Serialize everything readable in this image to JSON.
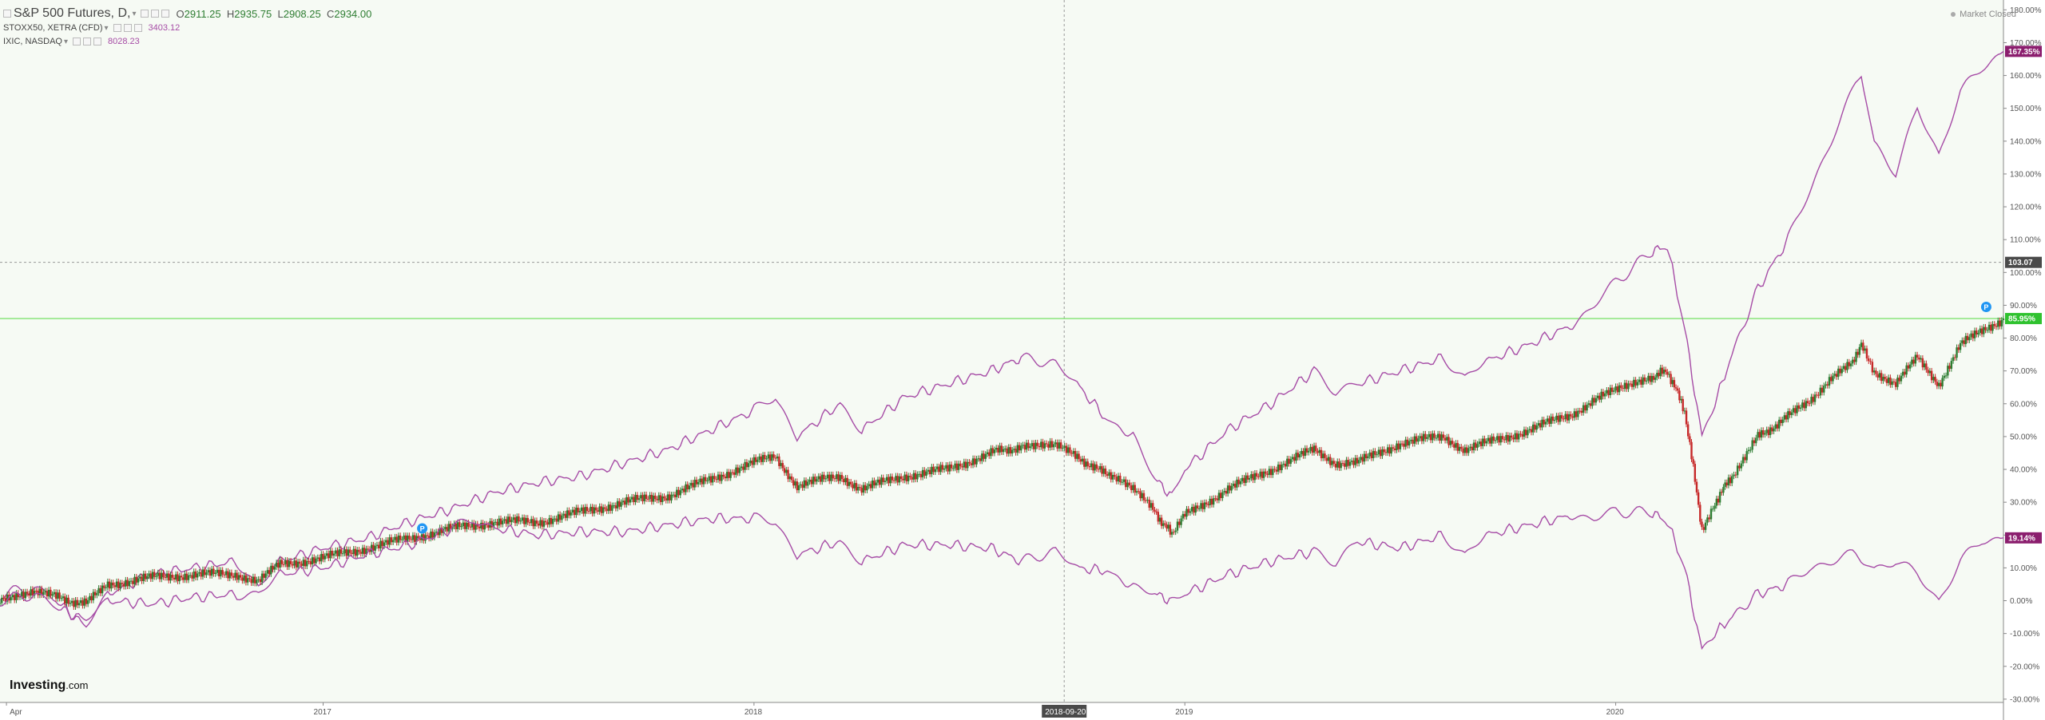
{
  "legend": {
    "main": {
      "name": "S&P 500 Futures, D,",
      "open_label": "O",
      "open": "2911.25",
      "high_label": "H",
      "high": "2935.75",
      "low_label": "L",
      "low": "2908.25",
      "close_label": "C",
      "close": "2934.00"
    },
    "overlays": [
      {
        "name": "STOXX50, XETRA (CFD)",
        "value": "3403.12"
      },
      {
        "name": "IXIC, NASDAQ",
        "value": "8028.23"
      }
    ]
  },
  "status": {
    "market": "Market Closed"
  },
  "branding": {
    "logo_main": "Investing",
    "logo_suffix": ".com"
  },
  "cursor": {
    "price_label": "103.07",
    "date_label": "2018-09-20"
  },
  "price_badges": {
    "ixic": "167.35%",
    "spx": "85.95%",
    "stoxx": "19.14%"
  },
  "colors": {
    "compare_line": "#a64ca6",
    "candle_up": "#2e7d32",
    "candle_down": "#c62828",
    "last_price_line": "#66dd55",
    "background": "#f6faf4",
    "marker": "#2196f3"
  },
  "chart_data": {
    "type": "line",
    "x_tick_labels": [
      "Apr",
      "2017",
      "2018",
      "2019",
      "2020"
    ],
    "y_tick_labels": [
      "180.00%",
      "170.00%",
      "160.00%",
      "150.00%",
      "140.00%",
      "130.00%",
      "120.00%",
      "110.00%",
      "100.00%",
      "90.00%",
      "80.00%",
      "70.00%",
      "60.00%",
      "50.00%",
      "40.00%",
      "30.00%",
      "20.00%",
      "10.00%",
      "0.00%",
      "-10.00%",
      "-20.00%",
      "-30.00%"
    ],
    "ylim": [
      -31,
      183
    ],
    "xlim": [
      2016.25,
      2020.9
    ],
    "last_price_level": 85.95,
    "cursor_x": 2018.72,
    "cursor_y": 103.07,
    "markers": [
      {
        "x": 2017.23,
        "y": 22,
        "label": "P"
      },
      {
        "x": 2020.86,
        "y": 89.5,
        "label": "P"
      }
    ],
    "series": [
      {
        "name": "IXIC, NASDAQ",
        "style": "line",
        "points": [
          [
            2016.25,
            2
          ],
          [
            2016.33,
            4
          ],
          [
            2016.38,
            0
          ],
          [
            2016.45,
            -8
          ],
          [
            2016.5,
            2
          ],
          [
            2016.6,
            8
          ],
          [
            2016.7,
            10
          ],
          [
            2016.8,
            12
          ],
          [
            2016.85,
            4
          ],
          [
            2016.9,
            12
          ],
          [
            2017.0,
            16
          ],
          [
            2017.1,
            19
          ],
          [
            2017.2,
            24
          ],
          [
            2017.3,
            28
          ],
          [
            2017.4,
            33
          ],
          [
            2017.5,
            36
          ],
          [
            2017.6,
            38
          ],
          [
            2017.7,
            42
          ],
          [
            2017.8,
            46
          ],
          [
            2017.9,
            52
          ],
          [
            2018.0,
            58
          ],
          [
            2018.05,
            62
          ],
          [
            2018.1,
            50
          ],
          [
            2018.2,
            60
          ],
          [
            2018.25,
            52
          ],
          [
            2018.35,
            62
          ],
          [
            2018.45,
            66
          ],
          [
            2018.55,
            70
          ],
          [
            2018.62,
            74
          ],
          [
            2018.7,
            72
          ],
          [
            2018.75,
            66
          ],
          [
            2018.82,
            55
          ],
          [
            2018.88,
            50
          ],
          [
            2018.93,
            37
          ],
          [
            2018.97,
            32
          ],
          [
            2019.0,
            40
          ],
          [
            2019.1,
            52
          ],
          [
            2019.2,
            60
          ],
          [
            2019.3,
            70
          ],
          [
            2019.35,
            64
          ],
          [
            2019.4,
            66
          ],
          [
            2019.5,
            70
          ],
          [
            2019.6,
            74
          ],
          [
            2019.65,
            68
          ],
          [
            2019.7,
            73
          ],
          [
            2019.8,
            78
          ],
          [
            2019.9,
            84
          ],
          [
            2019.95,
            90
          ],
          [
            2020.0,
            97
          ],
          [
            2020.08,
            106
          ],
          [
            2020.12,
            108
          ],
          [
            2020.16,
            83
          ],
          [
            2020.2,
            50
          ],
          [
            2020.23,
            60
          ],
          [
            2020.27,
            75
          ],
          [
            2020.33,
            95
          ],
          [
            2020.4,
            110
          ],
          [
            2020.45,
            125
          ],
          [
            2020.5,
            140
          ],
          [
            2020.55,
            155
          ],
          [
            2020.57,
            160
          ],
          [
            2020.6,
            140
          ],
          [
            2020.65,
            130
          ],
          [
            2020.7,
            150
          ],
          [
            2020.75,
            136
          ],
          [
            2020.8,
            155
          ],
          [
            2020.85,
            162
          ],
          [
            2020.9,
            167.35
          ]
        ]
      },
      {
        "name": "S&P 500 Futures",
        "style": "candle",
        "points": [
          [
            2016.25,
            1
          ],
          [
            2016.33,
            3
          ],
          [
            2016.38,
            1
          ],
          [
            2016.45,
            -1
          ],
          [
            2016.5,
            5
          ],
          [
            2016.6,
            7
          ],
          [
            2016.7,
            8
          ],
          [
            2016.8,
            8
          ],
          [
            2016.85,
            6
          ],
          [
            2016.9,
            11
          ],
          [
            2017.0,
            13
          ],
          [
            2017.1,
            16
          ],
          [
            2017.2,
            19
          ],
          [
            2017.3,
            22
          ],
          [
            2017.4,
            24
          ],
          [
            2017.5,
            24
          ],
          [
            2017.6,
            27
          ],
          [
            2017.7,
            30
          ],
          [
            2017.8,
            32
          ],
          [
            2017.9,
            37
          ],
          [
            2018.0,
            42
          ],
          [
            2018.05,
            44
          ],
          [
            2018.1,
            35
          ],
          [
            2018.2,
            38
          ],
          [
            2018.25,
            34
          ],
          [
            2018.35,
            38
          ],
          [
            2018.45,
            40
          ],
          [
            2018.55,
            45
          ],
          [
            2018.62,
            47
          ],
          [
            2018.7,
            47
          ],
          [
            2018.75,
            44
          ],
          [
            2018.82,
            38
          ],
          [
            2018.88,
            34
          ],
          [
            2018.93,
            27
          ],
          [
            2018.97,
            20
          ],
          [
            2019.0,
            26
          ],
          [
            2019.1,
            34
          ],
          [
            2019.2,
            40
          ],
          [
            2019.3,
            46
          ],
          [
            2019.35,
            42
          ],
          [
            2019.4,
            42
          ],
          [
            2019.5,
            48
          ],
          [
            2019.6,
            50
          ],
          [
            2019.65,
            46
          ],
          [
            2019.7,
            48
          ],
          [
            2019.8,
            52
          ],
          [
            2019.9,
            57
          ],
          [
            2019.95,
            61
          ],
          [
            2020.0,
            64
          ],
          [
            2020.08,
            68
          ],
          [
            2020.12,
            70
          ],
          [
            2020.16,
            58
          ],
          [
            2020.2,
            22
          ],
          [
            2020.23,
            30
          ],
          [
            2020.27,
            38
          ],
          [
            2020.33,
            50
          ],
          [
            2020.4,
            56
          ],
          [
            2020.45,
            61
          ],
          [
            2020.5,
            68
          ],
          [
            2020.55,
            72
          ],
          [
            2020.57,
            79
          ],
          [
            2020.6,
            70
          ],
          [
            2020.65,
            66
          ],
          [
            2020.7,
            74
          ],
          [
            2020.75,
            66
          ],
          [
            2020.8,
            78
          ],
          [
            2020.85,
            82
          ],
          [
            2020.9,
            85.95
          ]
        ]
      },
      {
        "name": "STOXX50, XETRA (CFD)",
        "style": "line",
        "points": [
          [
            2016.25,
            0
          ],
          [
            2016.33,
            2
          ],
          [
            2016.38,
            -2
          ],
          [
            2016.45,
            -6
          ],
          [
            2016.5,
            0
          ],
          [
            2016.6,
            -1
          ],
          [
            2016.7,
            1
          ],
          [
            2016.8,
            2
          ],
          [
            2016.85,
            2
          ],
          [
            2016.9,
            8
          ],
          [
            2017.0,
            10
          ],
          [
            2017.1,
            14
          ],
          [
            2017.2,
            17
          ],
          [
            2017.3,
            22
          ],
          [
            2017.35,
            25
          ],
          [
            2017.4,
            22
          ],
          [
            2017.5,
            20
          ],
          [
            2017.6,
            21
          ],
          [
            2017.7,
            21
          ],
          [
            2017.8,
            23
          ],
          [
            2017.9,
            25
          ],
          [
            2018.0,
            25
          ],
          [
            2018.05,
            24
          ],
          [
            2018.1,
            14
          ],
          [
            2018.2,
            18
          ],
          [
            2018.25,
            12
          ],
          [
            2018.35,
            17
          ],
          [
            2018.45,
            17
          ],
          [
            2018.55,
            16
          ],
          [
            2018.62,
            12
          ],
          [
            2018.7,
            15
          ],
          [
            2018.75,
            10
          ],
          [
            2018.82,
            9
          ],
          [
            2018.88,
            4
          ],
          [
            2018.93,
            2
          ],
          [
            2018.97,
            0
          ],
          [
            2019.0,
            2
          ],
          [
            2019.1,
            8
          ],
          [
            2019.2,
            12
          ],
          [
            2019.3,
            15
          ],
          [
            2019.35,
            12
          ],
          [
            2019.4,
            18
          ],
          [
            2019.5,
            16
          ],
          [
            2019.6,
            20
          ],
          [
            2019.65,
            14
          ],
          [
            2019.7,
            20
          ],
          [
            2019.8,
            23
          ],
          [
            2019.9,
            26
          ],
          [
            2019.95,
            25
          ],
          [
            2020.0,
            27
          ],
          [
            2020.08,
            27
          ],
          [
            2020.12,
            24
          ],
          [
            2020.16,
            10
          ],
          [
            2020.2,
            -15
          ],
          [
            2020.23,
            -10
          ],
          [
            2020.27,
            -5
          ],
          [
            2020.33,
            2
          ],
          [
            2020.4,
            5
          ],
          [
            2020.45,
            10
          ],
          [
            2020.5,
            12
          ],
          [
            2020.55,
            14
          ],
          [
            2020.57,
            12
          ],
          [
            2020.6,
            10
          ],
          [
            2020.65,
            12
          ],
          [
            2020.7,
            8
          ],
          [
            2020.75,
            0
          ],
          [
            2020.8,
            12
          ],
          [
            2020.85,
            18
          ],
          [
            2020.9,
            19.14
          ]
        ]
      }
    ]
  }
}
